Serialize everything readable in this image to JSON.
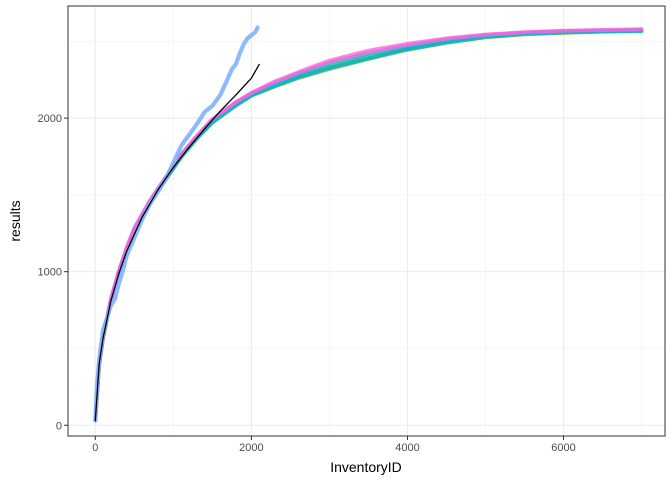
{
  "chart_data": {
    "type": "line",
    "title": "",
    "xlabel": "InventoryID",
    "ylabel": "results",
    "xlim": [
      -350,
      7300
    ],
    "ylim": [
      -70,
      2730
    ],
    "x_ticks": [
      0,
      2000,
      4000,
      6000
    ],
    "x_tick_labels": [
      "0",
      "2000",
      "4000",
      "6000"
    ],
    "y_ticks": [
      0,
      1000,
      2000
    ],
    "y_tick_labels": [
      "0",
      "1000",
      "2000"
    ],
    "grid": true,
    "legend": "none",
    "series": [
      {
        "color": "#F8766D",
        "x": [
          0,
          50,
          100,
          200,
          300,
          400,
          500,
          700,
          900,
          1100,
          1300,
          1500,
          1800,
          2000,
          2300,
          2600,
          3000,
          3500,
          4000,
          4500,
          5000,
          5500,
          6000,
          6500,
          7000
        ],
        "y": [
          30,
          400,
          580,
          820,
          1000,
          1150,
          1280,
          1460,
          1610,
          1760,
          1880,
          1990,
          2100,
          2160,
          2230,
          2290,
          2360,
          2420,
          2470,
          2510,
          2540,
          2555,
          2565,
          2570,
          2575
        ]
      },
      {
        "color": "#C49A00",
        "x": [
          0,
          50,
          100,
          200,
          300,
          400,
          500,
          700,
          900,
          1100,
          1300,
          1500,
          1800,
          2000,
          2300,
          2600,
          3000,
          3500,
          4000,
          4500,
          5000,
          5500,
          6000,
          6500,
          7000
        ],
        "y": [
          30,
          395,
          570,
          815,
          990,
          1140,
          1270,
          1450,
          1600,
          1750,
          1870,
          1975,
          2085,
          2150,
          2210,
          2270,
          2330,
          2390,
          2450,
          2495,
          2530,
          2550,
          2560,
          2565,
          2570
        ]
      },
      {
        "color": "#53B400",
        "x": [
          0,
          50,
          100,
          200,
          300,
          400,
          500,
          700,
          900,
          1100,
          1300,
          1500,
          1800,
          2000,
          2300,
          2600,
          3000,
          3500,
          4000,
          4500,
          5000,
          5500,
          6000,
          6500,
          7000
        ],
        "y": [
          30,
          390,
          565,
          810,
          985,
          1135,
          1265,
          1445,
          1595,
          1745,
          1865,
          1970,
          2080,
          2145,
          2205,
          2260,
          2320,
          2385,
          2445,
          2490,
          2525,
          2545,
          2555,
          2562,
          2568
        ]
      },
      {
        "color": "#00C094",
        "x": [
          0,
          50,
          100,
          200,
          300,
          400,
          500,
          700,
          900,
          1100,
          1300,
          1500,
          1800,
          2000,
          2300,
          2600,
          3000,
          3500,
          4000,
          4500,
          5000,
          5500,
          6000,
          6500,
          7000
        ],
        "y": [
          30,
          398,
          575,
          818,
          995,
          1145,
          1275,
          1455,
          1605,
          1755,
          1875,
          1980,
          2090,
          2155,
          2220,
          2280,
          2345,
          2405,
          2460,
          2505,
          2535,
          2552,
          2562,
          2567,
          2572
        ]
      },
      {
        "color": "#00B6EB",
        "x": [
          0,
          50,
          100,
          200,
          300,
          400,
          500,
          700,
          900,
          1100,
          1300,
          1500,
          1800,
          2000,
          2300,
          2600,
          3000,
          3500,
          4000,
          4500,
          5000,
          5500,
          6000,
          6500,
          7000
        ],
        "y": [
          30,
          392,
          568,
          812,
          988,
          1138,
          1268,
          1448,
          1598,
          1748,
          1868,
          1972,
          2082,
          2148,
          2208,
          2265,
          2325,
          2388,
          2448,
          2492,
          2528,
          2548,
          2558,
          2563,
          2566
        ]
      },
      {
        "color": "#A58AFF",
        "x": [
          0,
          50,
          100,
          200,
          300,
          400,
          500,
          700,
          900,
          1100,
          1300,
          1500,
          1800,
          2000,
          2300,
          2600,
          3000,
          3500,
          4000,
          4500,
          5000,
          5500,
          6000,
          6500,
          7000
        ],
        "y": [
          30,
          402,
          582,
          822,
          1002,
          1152,
          1282,
          1462,
          1612,
          1762,
          1882,
          1992,
          2102,
          2162,
          2232,
          2292,
          2362,
          2425,
          2475,
          2515,
          2542,
          2557,
          2567,
          2572,
          2577
        ]
      },
      {
        "color": "#FB61D7",
        "x": [
          0,
          50,
          100,
          200,
          300,
          400,
          500,
          700,
          900,
          1100,
          1300,
          1500,
          1800,
          2000,
          2300,
          2600,
          3000,
          3500,
          4000,
          4500,
          5000,
          5500,
          6000,
          6500,
          7000
        ],
        "y": [
          30,
          405,
          585,
          825,
          1005,
          1155,
          1285,
          1465,
          1615,
          1765,
          1885,
          1995,
          2105,
          2165,
          2240,
          2300,
          2375,
          2440,
          2485,
          2520,
          2545,
          2560,
          2570,
          2575,
          2580
        ]
      },
      {
        "color": "#80B3FF",
        "x": [
          0,
          20,
          50,
          100,
          150,
          200,
          250,
          300,
          350,
          400,
          450,
          500,
          600,
          700,
          800,
          900,
          1000,
          1100,
          1200,
          1300,
          1400,
          1500,
          1600,
          1700,
          1750,
          1800,
          1850,
          1900,
          1950,
          2000,
          2050,
          2080
        ],
        "y": [
          30,
          250,
          430,
          620,
          700,
          780,
          820,
          920,
          1000,
          1100,
          1160,
          1220,
          1340,
          1440,
          1520,
          1600,
          1710,
          1820,
          1890,
          1960,
          2040,
          2080,
          2150,
          2260,
          2320,
          2350,
          2420,
          2480,
          2520,
          2540,
          2560,
          2590
        ]
      },
      {
        "color": "#000000",
        "x": [
          0,
          50,
          100,
          200,
          300,
          400,
          600,
          800,
          1000,
          1200,
          1400,
          1600,
          1800,
          2000,
          2100
        ],
        "y": [
          30,
          400,
          570,
          810,
          985,
          1130,
          1355,
          1530,
          1680,
          1810,
          1930,
          2045,
          2150,
          2260,
          2350
        ]
      }
    ]
  }
}
